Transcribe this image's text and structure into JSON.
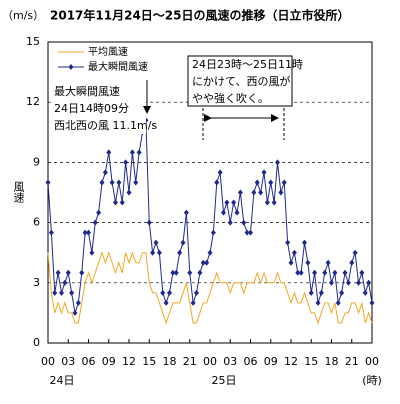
{
  "chart_data": {
    "type": "line",
    "title": "2017年11月24日～25日の風速の推移（日立市役所）",
    "unit_label": "（m/s）",
    "y_label": "風速",
    "x_unit_label": "(時)",
    "day_labels": [
      {
        "value": 0,
        "label": "24日"
      },
      {
        "value": 24,
        "label": "25日"
      }
    ],
    "annotations": [
      [
        "最大瞬間風速",
        "24日14時09分",
        "西北西の風 11.1m/s"
      ],
      [
        "24日23時～25日11時",
        "にかけて、西の風が",
        "やや強く吹く。"
      ]
    ],
    "x": [
      0,
      0.5,
      1,
      1.5,
      2,
      2.5,
      3,
      3.5,
      4,
      4.5,
      5,
      5.5,
      6,
      6.5,
      7,
      7.5,
      8,
      8.5,
      9,
      9.5,
      10,
      10.5,
      11,
      11.5,
      12,
      12.5,
      13,
      13.5,
      14,
      14.5,
      15,
      15.5,
      16,
      16.5,
      17,
      17.5,
      18,
      18.5,
      19,
      19.5,
      20,
      20.5,
      21,
      21.5,
      22,
      22.5,
      23,
      23.5,
      24,
      24.5,
      25,
      25.5,
      26,
      26.5,
      27,
      27.5,
      28,
      28.5,
      29,
      29.5,
      30,
      30.5,
      31,
      31.5,
      32,
      32.5,
      33,
      33.5,
      34,
      34.5,
      35,
      35.5,
      36,
      36.5,
      37,
      37.5,
      38,
      38.5,
      39,
      39.5,
      40,
      40.5,
      41,
      41.5,
      42,
      42.5,
      43,
      43.5,
      44,
      44.5,
      45,
      45.5,
      46,
      46.5,
      47,
      47.5,
      48
    ],
    "series": [
      {
        "name": "平均風速",
        "color": "#f5a623",
        "marker": false,
        "values": [
          4.5,
          2.5,
          1.5,
          2,
          1.5,
          2,
          1.5,
          1.5,
          1,
          1,
          2,
          3,
          3.5,
          3,
          3.5,
          4,
          4.5,
          4,
          4.5,
          4,
          3.5,
          4,
          3.5,
          4.5,
          4,
          4.5,
          4,
          4,
          4.5,
          4.5,
          3,
          2.5,
          2.5,
          2,
          1.5,
          1,
          1.5,
          2,
          2,
          2,
          2.5,
          3,
          2,
          1,
          1,
          1.5,
          2,
          2,
          2.5,
          3,
          3.5,
          3,
          3,
          3,
          2.5,
          3,
          3,
          3,
          2.5,
          3,
          3,
          3,
          3.5,
          3,
          3.5,
          3,
          3,
          3,
          3.5,
          3,
          3,
          2.5,
          2,
          2.5,
          2,
          2,
          2.5,
          2,
          1.5,
          1.5,
          1,
          1.5,
          2,
          2,
          1.5,
          2,
          1,
          1,
          1.5,
          1.5,
          2,
          2,
          1.5,
          2,
          1,
          1.5,
          1
        ]
      },
      {
        "name": "最大瞬間風速",
        "color": "#1f2a8c",
        "marker": true,
        "values": [
          8,
          5.5,
          2.5,
          3.5,
          2.5,
          3,
          3.5,
          2.5,
          1.5,
          2,
          3.5,
          5.5,
          5.5,
          4.5,
          6,
          6.5,
          8,
          8.5,
          9.5,
          8,
          7,
          8,
          7,
          9,
          7.5,
          9.5,
          8,
          9.5,
          10.5,
          11.1,
          6,
          4.5,
          5,
          4.5,
          2.5,
          2,
          2.5,
          3.5,
          3.5,
          4.5,
          5,
          6.5,
          3.5,
          2,
          2.5,
          3.5,
          4,
          4,
          4.5,
          5.5,
          8,
          8.5,
          6.5,
          7,
          6,
          7,
          6.5,
          7.5,
          6,
          5.5,
          5.5,
          7.5,
          8,
          7.5,
          8.5,
          7,
          8,
          7,
          9,
          7.5,
          8,
          5,
          4,
          4.5,
          3.5,
          3.5,
          5,
          4,
          2.5,
          3.5,
          2,
          2.5,
          3.5,
          4,
          3,
          3.5,
          2,
          2.5,
          3.5,
          3,
          4,
          4.5,
          3,
          3.5,
          2.5,
          3,
          2
        ]
      }
    ],
    "xlim": [
      0,
      48
    ],
    "xticks": [
      {
        "value": 0,
        "label": "00"
      },
      {
        "value": 3,
        "label": "03"
      },
      {
        "value": 6,
        "label": "06"
      },
      {
        "value": 9,
        "label": "09"
      },
      12,
      15,
      18,
      21,
      {
        "value": 24,
        "label": "00"
      },
      {
        "value": 27,
        "label": "03"
      },
      {
        "value": 30,
        "label": "06"
      },
      {
        "value": 33,
        "label": "09"
      },
      {
        "value": 36,
        "label": "12"
      },
      {
        "value": 39,
        "label": "15"
      },
      {
        "value": 42,
        "label": "18"
      },
      {
        "value": 45,
        "label": "21"
      },
      {
        "value": 48,
        "label": "00"
      }
    ],
    "ylim": [
      0,
      15
    ],
    "yticks": [
      0,
      3,
      6,
      9,
      12,
      15
    ],
    "grid": true,
    "legend": "top-left"
  }
}
